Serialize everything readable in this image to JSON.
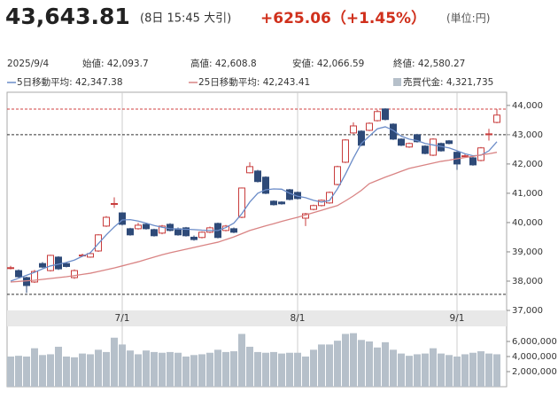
{
  "header": {
    "price": "43,643.81",
    "time": "(8日 15:45 大引)",
    "change": "+625.06（+1.45%）",
    "unit": "(単位:円)"
  },
  "info": [
    "2025/9/4",
    "始値: 42,093.7",
    "高値: 42,608.8",
    "安値: 42,066.59",
    "終値: 42,580.27"
  ],
  "chart_data": [
    {
      "type": "candlestick",
      "categories": [
        null,
        null,
        null,
        null,
        null,
        null,
        null,
        null,
        null,
        null,
        null,
        null,
        null,
        null,
        "7/1",
        null,
        null,
        null,
        null,
        null,
        null,
        null,
        null,
        null,
        null,
        null,
        null,
        null,
        null,
        null,
        null,
        null,
        null,
        null,
        null,
        null,
        "8/1",
        null,
        null,
        null,
        null,
        null,
        null,
        null,
        null,
        null,
        null,
        null,
        null,
        null,
        null,
        null,
        null,
        null,
        null,
        null,
        "9/1",
        null,
        null,
        null,
        null,
        null
      ],
      "ohlc": {
        "up_color": "#c83c3c",
        "down_color": "#2e4a78",
        "open": [
          38440,
          38360,
          38120,
          37970,
          38600,
          38360,
          38820,
          38600,
          38120,
          38870,
          38820,
          39030,
          39880,
          40620,
          40330,
          39790,
          39790,
          39940,
          39760,
          39640,
          39940,
          39790,
          39820,
          39500,
          39490,
          39670,
          39970,
          39730,
          39790,
          40180,
          41700,
          41760,
          41550,
          40730,
          40700,
          41120,
          41030,
          40150,
          40450,
          40580,
          40670,
          41300,
          42060,
          43060,
          43120,
          43150,
          43480,
          43880,
          43360,
          42850,
          42580,
          43000,
          42610,
          42300,
          42700,
          42790,
          42400,
          42260,
          42210,
          42120,
          43000,
          43420
        ],
        "high": [
          38520,
          38400,
          38150,
          38380,
          38650,
          38900,
          38850,
          38640,
          38400,
          38940,
          38980,
          39600,
          40220,
          40860,
          40350,
          39820,
          39990,
          39980,
          39790,
          39920,
          39980,
          39830,
          39850,
          39560,
          39700,
          39860,
          40000,
          39920,
          39830,
          41200,
          42060,
          41800,
          41580,
          40760,
          40730,
          41150,
          41060,
          40330,
          40610,
          40790,
          41060,
          41940,
          42850,
          43420,
          43150,
          43420,
          43850,
          43900,
          43390,
          42880,
          42730,
          43030,
          42640,
          42880,
          42730,
          42820,
          42430,
          42360,
          42240,
          42580,
          43200,
          43875
        ],
        "low": [
          38400,
          38120,
          37600,
          37940,
          38450,
          38330,
          38380,
          38470,
          38080,
          38830,
          38800,
          39000,
          39850,
          40500,
          39900,
          39550,
          39760,
          39760,
          39520,
          39600,
          39700,
          39550,
          39520,
          39380,
          39460,
          39640,
          39460,
          39700,
          39640,
          40150,
          41680,
          41370,
          40970,
          40580,
          40610,
          40760,
          40790,
          39880,
          40420,
          40550,
          40640,
          41270,
          42030,
          43030,
          42610,
          43120,
          43450,
          43490,
          42820,
          42610,
          42550,
          42730,
          42330,
          42270,
          42420,
          42670,
          41800,
          42220,
          41940,
          42090,
          42800,
          43390
        ],
        "close": [
          38460,
          38150,
          37850,
          38330,
          38480,
          38880,
          38420,
          38500,
          38360,
          38890,
          38940,
          39580,
          40180,
          40650,
          39940,
          39580,
          39910,
          39790,
          39550,
          39880,
          39730,
          39580,
          39550,
          39420,
          39670,
          39820,
          39490,
          39880,
          39670,
          41180,
          41910,
          41400,
          41000,
          40610,
          40640,
          40790,
          40820,
          40300,
          40580,
          40760,
          41030,
          41910,
          42820,
          43300,
          42640,
          43390,
          43790,
          43520,
          42850,
          42640,
          42700,
          42760,
          42360,
          42850,
          42450,
          42700,
          42000,
          42280,
          41970,
          42550,
          43030,
          43670
        ]
      },
      "series": [
        {
          "name": "5日移動平均: 42,347.38",
          "color": "#6b8cc8",
          "values": [
            38000,
            38100,
            38200,
            38300,
            38420,
            38520,
            38580,
            38640,
            38720,
            38850,
            38970,
            39280,
            39580,
            39850,
            40090,
            40100,
            40050,
            39980,
            39900,
            39840,
            39790,
            39780,
            39770,
            39760,
            39740,
            39730,
            39730,
            39830,
            39980,
            40300,
            40700,
            41000,
            41120,
            41150,
            41140,
            41000,
            40900,
            40850,
            40760,
            40700,
            40750,
            41150,
            41650,
            42200,
            42700,
            42950,
            43200,
            43270,
            43150,
            42950,
            42850,
            42800,
            42700,
            42650,
            42600,
            42550,
            42450,
            42350,
            42280,
            42300,
            42450,
            42760
          ]
        },
        {
          "name": "25日移動平均: 42,243.41",
          "color": "#d98484",
          "values": [
            37970,
            37990,
            38010,
            38030,
            38060,
            38090,
            38120,
            38150,
            38190,
            38230,
            38270,
            38330,
            38390,
            38450,
            38520,
            38590,
            38660,
            38740,
            38820,
            38900,
            38970,
            39030,
            39090,
            39150,
            39210,
            39270,
            39330,
            39420,
            39510,
            39620,
            39730,
            39810,
            39890,
            39960,
            40040,
            40110,
            40180,
            40260,
            40340,
            40420,
            40500,
            40580,
            40740,
            40910,
            41100,
            41330,
            41440,
            41550,
            41650,
            41750,
            41850,
            41910,
            41970,
            42030,
            42090,
            42130,
            42180,
            42220,
            42260,
            42310,
            42350,
            42400
          ]
        }
      ],
      "reference_lines": [
        {
          "value": 43875,
          "color": "#d04040"
        },
        {
          "value": 43000,
          "color": "#333333"
        },
        {
          "value": 37550,
          "color": "#333333"
        }
      ],
      "ylim": [
        37000,
        44450
      ],
      "yticks": [
        {
          "value": 37000,
          "label": "37,000"
        },
        {
          "value": 38000,
          "label": "38,000"
        },
        {
          "value": 39000,
          "label": "39,000"
        },
        {
          "value": 40000,
          "label": "40,000"
        },
        {
          "value": 41000,
          "label": "41,000"
        },
        {
          "value": 42000,
          "label": "42,000"
        },
        {
          "value": 43000,
          "label": "43,000"
        },
        {
          "value": 44000,
          "label": "44,000"
        }
      ]
    },
    {
      "type": "bar",
      "series": [
        {
          "name": "売買代金: 4,321,735",
          "color": "#b6c0ca",
          "values": [
            4000000,
            4100000,
            4000000,
            5100000,
            4200000,
            4300000,
            5300000,
            4000000,
            3900000,
            4400000,
            4300000,
            4900000,
            4600000,
            6500000,
            5600000,
            4800000,
            4300000,
            4800000,
            4600000,
            4500000,
            4600000,
            4500000,
            4000000,
            4200000,
            4300000,
            4500000,
            4900000,
            4600000,
            4700000,
            7000000,
            5300000,
            4600000,
            4500000,
            4600000,
            4400000,
            4500000,
            4500000,
            4000000,
            4900000,
            5600000,
            5600000,
            6100000,
            7000000,
            7100000,
            6200000,
            6000000,
            5200000,
            5900000,
            4900000,
            4400000,
            4100000,
            4300000,
            4400000,
            5100000,
            4400000,
            4200000,
            4000000,
            4300000,
            4500000,
            4700000,
            4400000,
            4300000
          ]
        }
      ],
      "ylim": [
        0,
        8000000
      ],
      "yticks": [
        {
          "value": 2000000,
          "label": "2,000,000"
        },
        {
          "value": 4000000,
          "label": "4,000,000"
        },
        {
          "value": 6000000,
          "label": "6,000,000"
        }
      ]
    }
  ]
}
